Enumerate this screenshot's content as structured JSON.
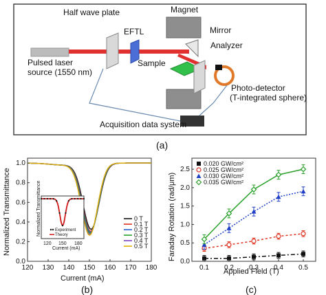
{
  "figure_a": {
    "labels": {
      "half_wave_plate": "Half wave plate",
      "magnet": "Magnet",
      "eftl": "EFTL",
      "mirror": "Mirror",
      "laser_line1": "Pulsed laser",
      "laser_line2": "source (1550 nm)",
      "analyzer": "Analyzer",
      "sample": "Sample",
      "photodetector_line1": "Photo-detector",
      "photodetector_line2": "(T-integrated sphere)",
      "acquisition": "Acquisition data system"
    },
    "caption": "(a)"
  },
  "chart_data": [
    {
      "type": "line",
      "panel": "(b)",
      "xlabel": "Current (mA)",
      "ylabel": "Normalized Transmittance",
      "xlim": [
        120,
        180
      ],
      "ylim": [
        0.0,
        1.05
      ],
      "x_ticks": [
        "120",
        "130",
        "140",
        "150",
        "160",
        "170",
        "180"
      ],
      "y_ticks": [
        "0.0",
        "0.2",
        "0.4",
        "0.6",
        "0.8",
        "1.0"
      ],
      "series": [
        {
          "name": "0 T",
          "color": "#111111",
          "center": 150.8,
          "min": 0.33
        },
        {
          "name": "0.1 T",
          "color": "#e0301e",
          "center": 150.6,
          "min": 0.31
        },
        {
          "name": "0.2 T",
          "color": "#1f5fd6",
          "center": 150.5,
          "min": 0.3
        },
        {
          "name": "0.3 T",
          "color": "#2aa02a",
          "center": 150.4,
          "min": 0.29
        },
        {
          "name": "0.4 T",
          "color": "#7b3fbf",
          "center": 150.2,
          "min": 0.28
        },
        {
          "name": "0.5 T",
          "color": "#e0b000",
          "center": 150.1,
          "min": 0.27
        }
      ],
      "inset": {
        "ylabel": "Normalized Transmittance",
        "xlabel": "Current (mA)",
        "x_ticks": [
          "120",
          "150",
          "180"
        ],
        "legend": [
          "Experiment",
          "Theory"
        ]
      },
      "caption": "(b)"
    },
    {
      "type": "scatter",
      "panel": "(c)",
      "xlabel": "Applied Field (T)",
      "ylabel": "Faraday Rotation (rad/μm)",
      "xlim": [
        0.05,
        0.55
      ],
      "ylim": [
        0,
        2.8
      ],
      "x_ticks": [
        "0.1",
        "0.2",
        "0.3",
        "0.4",
        "0.5"
      ],
      "y_ticks": [
        "0.0",
        "0.5",
        "1.0",
        "1.5",
        "2.0",
        "2.5"
      ],
      "x": [
        0.1,
        0.2,
        0.3,
        0.4,
        0.5
      ],
      "series": [
        {
          "name": "0.020 GW/cm²",
          "color": "#111111",
          "marker": "square",
          "values": [
            0.08,
            0.08,
            0.12,
            0.16,
            0.2
          ],
          "err": 0.08,
          "dash": "6,3,2,3"
        },
        {
          "name": "0.025 GW/cm²",
          "color": "#e0301e",
          "marker": "circle",
          "values": [
            0.35,
            0.45,
            0.55,
            0.68,
            0.75
          ],
          "err": 0.08,
          "dash": "3,3"
        },
        {
          "name": "0.030 GW/cm²",
          "color": "#1f3fc6",
          "marker": "triangle",
          "values": [
            0.45,
            0.9,
            1.35,
            1.75,
            1.9
          ],
          "err": 0.12,
          "dash": "2,2"
        },
        {
          "name": "0.035 GW/cm²",
          "color": "#2aa02a",
          "marker": "diamond",
          "values": [
            0.6,
            1.3,
            1.95,
            2.35,
            2.5
          ],
          "err": 0.12,
          "dash": ""
        }
      ],
      "caption": "(c)"
    }
  ]
}
